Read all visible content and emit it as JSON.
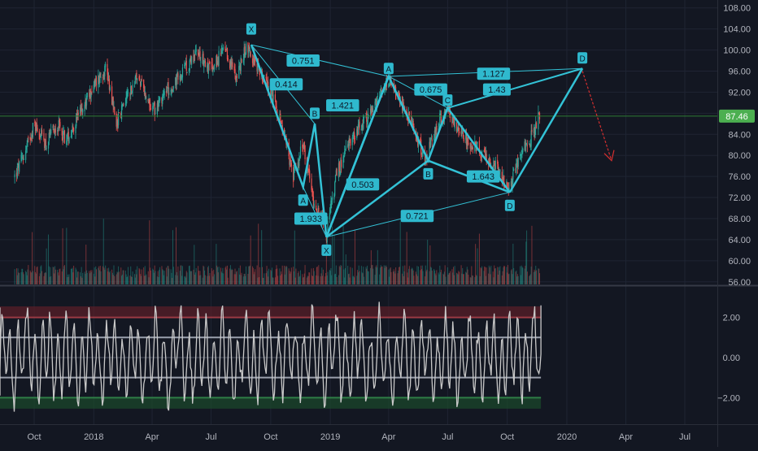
{
  "chart_data": [
    {
      "type": "candlestick",
      "title": "",
      "y_axis": {
        "ticks": [
          "108.00",
          "104.00",
          "100.00",
          "96.00",
          "92.00",
          "88.00",
          "84.00",
          "80.00",
          "76.00",
          "72.00",
          "68.00",
          "64.00",
          "60.00",
          "56.00"
        ],
        "ylim": [
          55.5,
          109.5
        ]
      },
      "last_price": "87.46",
      "price_path": [
        [
          "2017-09-01",
          76
        ],
        [
          "2017-09-15",
          80
        ],
        [
          "2017-10-01",
          86
        ],
        [
          "2017-10-20",
          82
        ],
        [
          "2017-11-05",
          86
        ],
        [
          "2017-11-20",
          83
        ],
        [
          "2017-12-10",
          88
        ],
        [
          "2018-01-05",
          94
        ],
        [
          "2018-01-20",
          97
        ],
        [
          "2018-02-05",
          86
        ],
        [
          "2018-02-20",
          91
        ],
        [
          "2018-03-10",
          95
        ],
        [
          "2018-04-01",
          88
        ],
        [
          "2018-04-20",
          92
        ],
        [
          "2018-05-15",
          95
        ],
        [
          "2018-06-10",
          100
        ],
        [
          "2018-07-01",
          96
        ],
        [
          "2018-07-20",
          100
        ],
        [
          "2018-08-10",
          95
        ],
        [
          "2018-08-25",
          101
        ],
        [
          "2018-09-10",
          97
        ],
        [
          "2018-10-01",
          92
        ],
        [
          "2018-10-20",
          85
        ],
        [
          "2018-11-05",
          76
        ],
        [
          "2018-11-20",
          82
        ],
        [
          "2018-12-05",
          72
        ],
        [
          "2018-12-26",
          65
        ],
        [
          "2019-01-10",
          76
        ],
        [
          "2019-02-01",
          83
        ],
        [
          "2019-02-20",
          86
        ],
        [
          "2019-03-10",
          89
        ],
        [
          "2019-04-01",
          94
        ],
        [
          "2019-04-20",
          90
        ],
        [
          "2019-05-10",
          85
        ],
        [
          "2019-05-28",
          79
        ],
        [
          "2019-06-15",
          86
        ],
        [
          "2019-07-01",
          89
        ],
        [
          "2019-07-20",
          84
        ],
        [
          "2019-08-10",
          82
        ],
        [
          "2019-09-01",
          79
        ],
        [
          "2019-09-20",
          77
        ],
        [
          "2019-10-03",
          73
        ],
        [
          "2019-10-20",
          80
        ],
        [
          "2019-11-10",
          84
        ],
        [
          "2019-11-20",
          88
        ]
      ],
      "volume_axis_min": 0
    },
    {
      "type": "line",
      "name": "oscillator",
      "y_axis": {
        "ticks": [
          "2.00",
          "0.00",
          "−2.00"
        ],
        "ylim": [
          -3.0,
          3.2
        ]
      },
      "levels": [
        2,
        1,
        -1,
        -2
      ],
      "x_start": "2017-09-01",
      "x_end": "2019-11-22"
    }
  ],
  "time_axis": {
    "ticks": [
      {
        "label": "Oct",
        "date": "2017-10-01"
      },
      {
        "label": "2018",
        "date": "2018-01-01"
      },
      {
        "label": "Apr",
        "date": "2018-04-01"
      },
      {
        "label": "Jul",
        "date": "2018-07-01"
      },
      {
        "label": "Oct",
        "date": "2018-10-01"
      },
      {
        "label": "2019",
        "date": "2019-01-01"
      },
      {
        "label": "Apr",
        "date": "2019-04-01"
      },
      {
        "label": "Jul",
        "date": "2019-07-01"
      },
      {
        "label": "Oct",
        "date": "2019-10-01"
      },
      {
        "label": "2020",
        "date": "2020-01-01"
      },
      {
        "label": "Apr",
        "date": "2020-04-01"
      },
      {
        "label": "Jul",
        "date": "2020-07-01"
      }
    ]
  },
  "drawings": {
    "patterns": [
      {
        "name": "pattern-1",
        "points": [
          {
            "label": "X",
            "date": "2018-09-01",
            "price": 101
          },
          {
            "label": "A",
            "date": "2018-11-20",
            "price": 74
          },
          {
            "label": "B",
            "date": "2018-12-08",
            "price": 86
          },
          {
            "label": "C",
            "date": "2018-12-26",
            "price": 64.5
          },
          {
            "label": "D",
            "date": "2019-04-01",
            "price": 95
          }
        ]
      },
      {
        "name": "pattern-2",
        "points": [
          {
            "label": "X",
            "date": "2018-12-26",
            "price": 64.5
          },
          {
            "label": "A",
            "date": "2019-04-01",
            "price": 95
          },
          {
            "label": "B",
            "date": "2019-06-01",
            "price": 79
          },
          {
            "label": "C",
            "date": "2019-07-01",
            "price": 89
          },
          {
            "label": "D",
            "date": "2019-10-05",
            "price": 73
          },
          {
            "label": "D",
            "date": "2020-01-25",
            "price": 96.5
          }
        ]
      }
    ],
    "point_labels": [
      {
        "text": "X",
        "date": "2018-09-01",
        "price": 104,
        "dir": "up"
      },
      {
        "text": "A",
        "date": "2018-11-20",
        "price": 71.5,
        "dir": "down"
      },
      {
        "text": "B",
        "date": "2018-12-08",
        "price": 88,
        "dir": "up"
      },
      {
        "text": "X",
        "date": "2018-12-26",
        "price": 62,
        "dir": "down"
      },
      {
        "text": "A",
        "date": "2019-04-01",
        "price": 96.5,
        "dir": "up"
      },
      {
        "text": "B",
        "date": "2019-06-01",
        "price": 76.5,
        "dir": "down"
      },
      {
        "text": "C",
        "date": "2019-07-01",
        "price": 90.5,
        "dir": "up"
      },
      {
        "text": "D",
        "date": "2019-10-05",
        "price": 70.5,
        "dir": "down"
      },
      {
        "text": "D",
        "date": "2020-01-25",
        "price": 98.5,
        "dir": "up"
      }
    ],
    "ratio_labels": [
      {
        "text": "0.751",
        "date": "2018-11-20",
        "price": 98
      },
      {
        "text": "0.414",
        "date": "2018-10-25",
        "price": 93.5
      },
      {
        "text": "1.421",
        "date": "2019-01-20",
        "price": 89.5
      },
      {
        "text": "1.933",
        "date": "2018-12-02",
        "price": 68
      },
      {
        "text": "0.675",
        "date": "2019-06-05",
        "price": 92.5
      },
      {
        "text": "1.127",
        "date": "2019-09-10",
        "price": 95.5
      },
      {
        "text": "1.43",
        "date": "2019-09-15",
        "price": 92.5
      },
      {
        "text": "0.503",
        "date": "2019-02-20",
        "price": 74.5
      },
      {
        "text": "0.721",
        "date": "2019-05-15",
        "price": 68.5
      },
      {
        "text": "1.643",
        "date": "2019-08-25",
        "price": 76
      }
    ],
    "projection": {
      "from_date": "2020-01-25",
      "from_price": 96,
      "to_date": "2020-03-10",
      "to_price": 79
    }
  },
  "colors": {
    "background": "#131722",
    "grid": "#1f2433",
    "up": "#26a69a",
    "down": "#ef5350",
    "pattern": "#33c2d6",
    "pattern_label_bg": "#2fb9ce",
    "price_line": "#2e7d32",
    "price_badge": "#4caf50",
    "oscillator": "#c9c9c9",
    "projection": "#d32f2f",
    "axis_text": "#b2b5be"
  }
}
